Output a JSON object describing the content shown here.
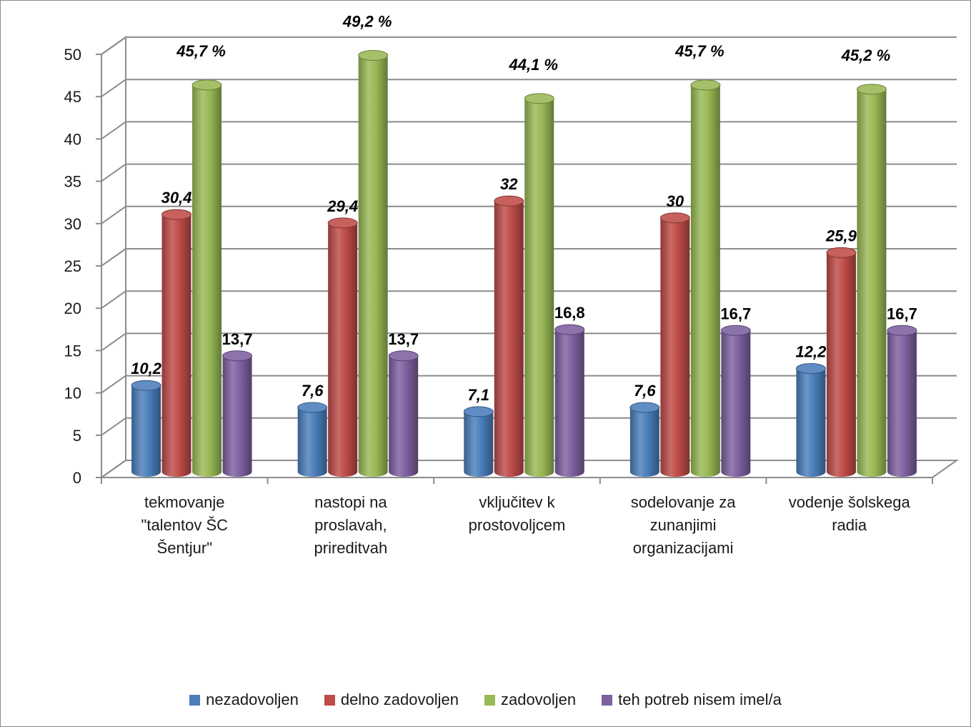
{
  "chart_data": {
    "type": "bar",
    "categories": [
      [
        "tekmovanje",
        "\"talentov ŠC",
        "Šentjur\""
      ],
      [
        "nastopi na",
        "proslavah,",
        "prireditvah"
      ],
      [
        "vključitev k",
        "prostovoljcem"
      ],
      [
        "sodelovanje za",
        "zunanjimi",
        "organizacijami"
      ],
      [
        "vodenje šolskega",
        "radia"
      ]
    ],
    "series": [
      {
        "name": "nezadovoljen",
        "color": "#4a7ebb",
        "values": [
          10.2,
          7.6,
          7.1,
          7.6,
          12.2
        ],
        "labels": [
          "10,2",
          "7,6",
          "7,1",
          "7,6",
          "12,2"
        ],
        "label_style": "italic"
      },
      {
        "name": "delno zadovoljen",
        "color": "#be4b48",
        "values": [
          30.4,
          29.4,
          32,
          30,
          25.9
        ],
        "labels": [
          "30,4",
          "29,4",
          "32",
          "30",
          "25,9"
        ],
        "label_style": "italic"
      },
      {
        "name": "zadovoljen",
        "color": "#98b954",
        "values": [
          45.7,
          49.2,
          44.1,
          45.7,
          45.2
        ],
        "labels": [
          "45,7 %",
          "49,2 %",
          "44,1 %",
          "45,7 %",
          "45,2 %"
        ],
        "label_style": "italic"
      },
      {
        "name": "teh potreb nisem imel/a",
        "color": "#7d60a0",
        "values": [
          13.7,
          13.7,
          16.8,
          16.7,
          16.7
        ],
        "labels": [
          "13,7",
          "13,7",
          "16,8",
          "16,7",
          "16,7"
        ],
        "label_style": "normal"
      }
    ],
    "yticks": [
      "0",
      "5",
      "10",
      "15",
      "20",
      "25",
      "30",
      "35",
      "40",
      "45",
      "50"
    ],
    "ylim": [
      0,
      50
    ],
    "grid": true,
    "legend_position": "bottom"
  }
}
